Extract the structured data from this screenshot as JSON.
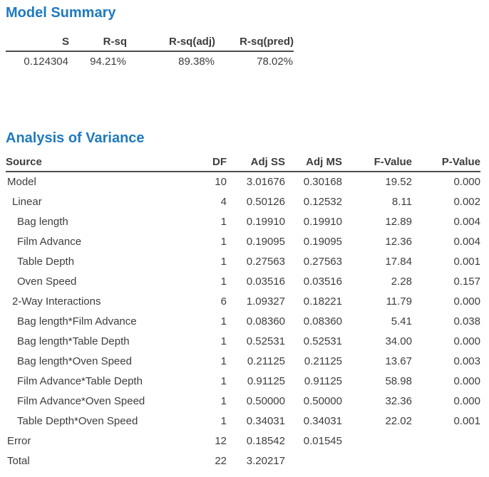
{
  "colors": {
    "title_blue": "#1e7ac0",
    "text": "#3d3d3d",
    "rule": "#4d4d4d"
  },
  "model_summary": {
    "title": "Model Summary",
    "columns": [
      "S",
      "R-sq",
      "R-sq(adj)",
      "R-sq(pred)"
    ],
    "values": [
      "0.124304",
      "94.21%",
      "89.38%",
      "78.02%"
    ]
  },
  "anova": {
    "title": "Analysis of Variance",
    "columns": [
      "Source",
      "DF",
      "Adj SS",
      "Adj MS",
      "F-Value",
      "P-Value"
    ],
    "rows": [
      {
        "label": "Model",
        "indent": 0,
        "values": [
          "10",
          "3.01676",
          "0.30168",
          "19.52",
          "0.000"
        ]
      },
      {
        "label": "Linear",
        "indent": 1,
        "values": [
          "4",
          "0.50126",
          "0.12532",
          "8.11",
          "0.002"
        ]
      },
      {
        "label": "Bag length",
        "indent": 2,
        "values": [
          "1",
          "0.19910",
          "0.19910",
          "12.89",
          "0.004"
        ]
      },
      {
        "label": "Film Advance",
        "indent": 2,
        "values": [
          "1",
          "0.19095",
          "0.19095",
          "12.36",
          "0.004"
        ]
      },
      {
        "label": "Table Depth",
        "indent": 2,
        "values": [
          "1",
          "0.27563",
          "0.27563",
          "17.84",
          "0.001"
        ]
      },
      {
        "label": "Oven Speed",
        "indent": 2,
        "values": [
          "1",
          "0.03516",
          "0.03516",
          "2.28",
          "0.157"
        ]
      },
      {
        "label": "2-Way Interactions",
        "indent": 1,
        "values": [
          "6",
          "1.09327",
          "0.18221",
          "11.79",
          "0.000"
        ]
      },
      {
        "label": "Bag length*Film Advance",
        "indent": 2,
        "values": [
          "1",
          "0.08360",
          "0.08360",
          "5.41",
          "0.038"
        ]
      },
      {
        "label": "Bag length*Table Depth",
        "indent": 2,
        "values": [
          "1",
          "0.52531",
          "0.52531",
          "34.00",
          "0.000"
        ]
      },
      {
        "label": "Bag length*Oven Speed",
        "indent": 2,
        "values": [
          "1",
          "0.21125",
          "0.21125",
          "13.67",
          "0.003"
        ]
      },
      {
        "label": "Film Advance*Table Depth",
        "indent": 2,
        "values": [
          "1",
          "0.91125",
          "0.91125",
          "58.98",
          "0.000"
        ]
      },
      {
        "label": "Film Advance*Oven Speed",
        "indent": 2,
        "values": [
          "1",
          "0.50000",
          "0.50000",
          "32.36",
          "0.000"
        ]
      },
      {
        "label": "Table Depth*Oven Speed",
        "indent": 2,
        "values": [
          "1",
          "0.34031",
          "0.34031",
          "22.02",
          "0.001"
        ]
      },
      {
        "label": "Error",
        "indent": 0,
        "values": [
          "12",
          "0.18542",
          "0.01545",
          "",
          ""
        ]
      },
      {
        "label": "Total",
        "indent": 0,
        "values": [
          "22",
          "3.20217",
          "",
          "",
          ""
        ]
      }
    ]
  }
}
